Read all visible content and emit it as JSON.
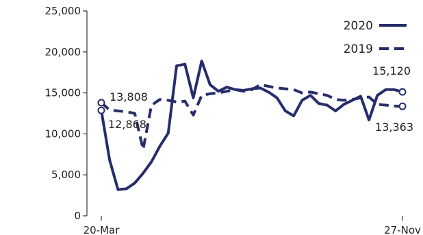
{
  "chart_data": {
    "type": "line",
    "title": "",
    "xlabel": "",
    "ylabel": "",
    "ylim": [
      0,
      25000
    ],
    "yticks": [
      0,
      5000,
      10000,
      15000,
      20000,
      25000
    ],
    "ytick_labels": [
      "0",
      "5,000",
      "10,000",
      "15,000",
      "20,000",
      "25,000"
    ],
    "x_range": [
      "20-Mar",
      "27-Nov"
    ],
    "xtick_labels": [
      "20-Mar",
      "27-Nov"
    ],
    "grid": false,
    "legend": "top-right",
    "color": "#262d6b",
    "series": [
      {
        "name": "2020",
        "style": "solid",
        "x": [
          "20-Mar",
          "27-Mar",
          "3-Apr",
          "10-Apr",
          "17-Apr",
          "24-Apr",
          "1-May",
          "8-May",
          "15-May",
          "22-May",
          "29-May",
          "5-Jun",
          "12-Jun",
          "19-Jun",
          "26-Jun",
          "3-Jul",
          "10-Jul",
          "17-Jul",
          "24-Jul",
          "31-Jul",
          "7-Aug",
          "14-Aug",
          "21-Aug",
          "28-Aug",
          "4-Sep",
          "11-Sep",
          "18-Sep",
          "25-Sep",
          "2-Oct",
          "9-Oct",
          "16-Oct",
          "23-Oct",
          "30-Oct",
          "6-Nov",
          "13-Nov",
          "20-Nov",
          "27-Nov"
        ],
        "values": [
          12868,
          6800,
          3200,
          3300,
          4000,
          5200,
          6600,
          8500,
          10100,
          18300,
          18500,
          14400,
          18900,
          16000,
          15200,
          15700,
          15400,
          15300,
          15500,
          15600,
          15100,
          14400,
          12800,
          12200,
          14100,
          14700,
          13700,
          13500,
          12800,
          13600,
          14100,
          14600,
          11700,
          14700,
          15400,
          15400,
          15120
        ]
      },
      {
        "name": "2019",
        "style": "dashed",
        "x": [
          "20-Mar",
          "27-Mar",
          "3-Apr",
          "10-Apr",
          "17-Apr",
          "24-Apr",
          "1-May",
          "8-May",
          "15-May",
          "22-May",
          "29-May",
          "5-Jun",
          "12-Jun",
          "19-Jun",
          "26-Jun",
          "3-Jul",
          "10-Jul",
          "17-Jul",
          "24-Jul",
          "31-Jul",
          "7-Aug",
          "14-Aug",
          "21-Aug",
          "28-Aug",
          "4-Sep",
          "11-Sep",
          "18-Sep",
          "25-Sep",
          "2-Oct",
          "9-Oct",
          "16-Oct",
          "23-Oct",
          "30-Oct",
          "6-Nov",
          "13-Nov",
          "20-Nov",
          "27-Nov"
        ],
        "values": [
          13808,
          12900,
          12800,
          12700,
          12500,
          8100,
          13500,
          14200,
          14100,
          13900,
          14000,
          12300,
          14700,
          14900,
          15000,
          15200,
          15400,
          15200,
          15400,
          16000,
          15800,
          15600,
          15500,
          15400,
          15000,
          15100,
          14900,
          14700,
          14200,
          14100,
          14200,
          14400,
          14500,
          13600,
          13500,
          13400,
          13363
        ]
      }
    ],
    "annotations": [
      {
        "text": "12,868",
        "series": "2020",
        "at": "20-Mar"
      },
      {
        "text": "13,808",
        "series": "2019",
        "at": "20-Mar"
      },
      {
        "text": "15,120",
        "series": "2020",
        "at": "27-Nov"
      },
      {
        "text": "13,363",
        "series": "2019",
        "at": "27-Nov"
      }
    ]
  }
}
